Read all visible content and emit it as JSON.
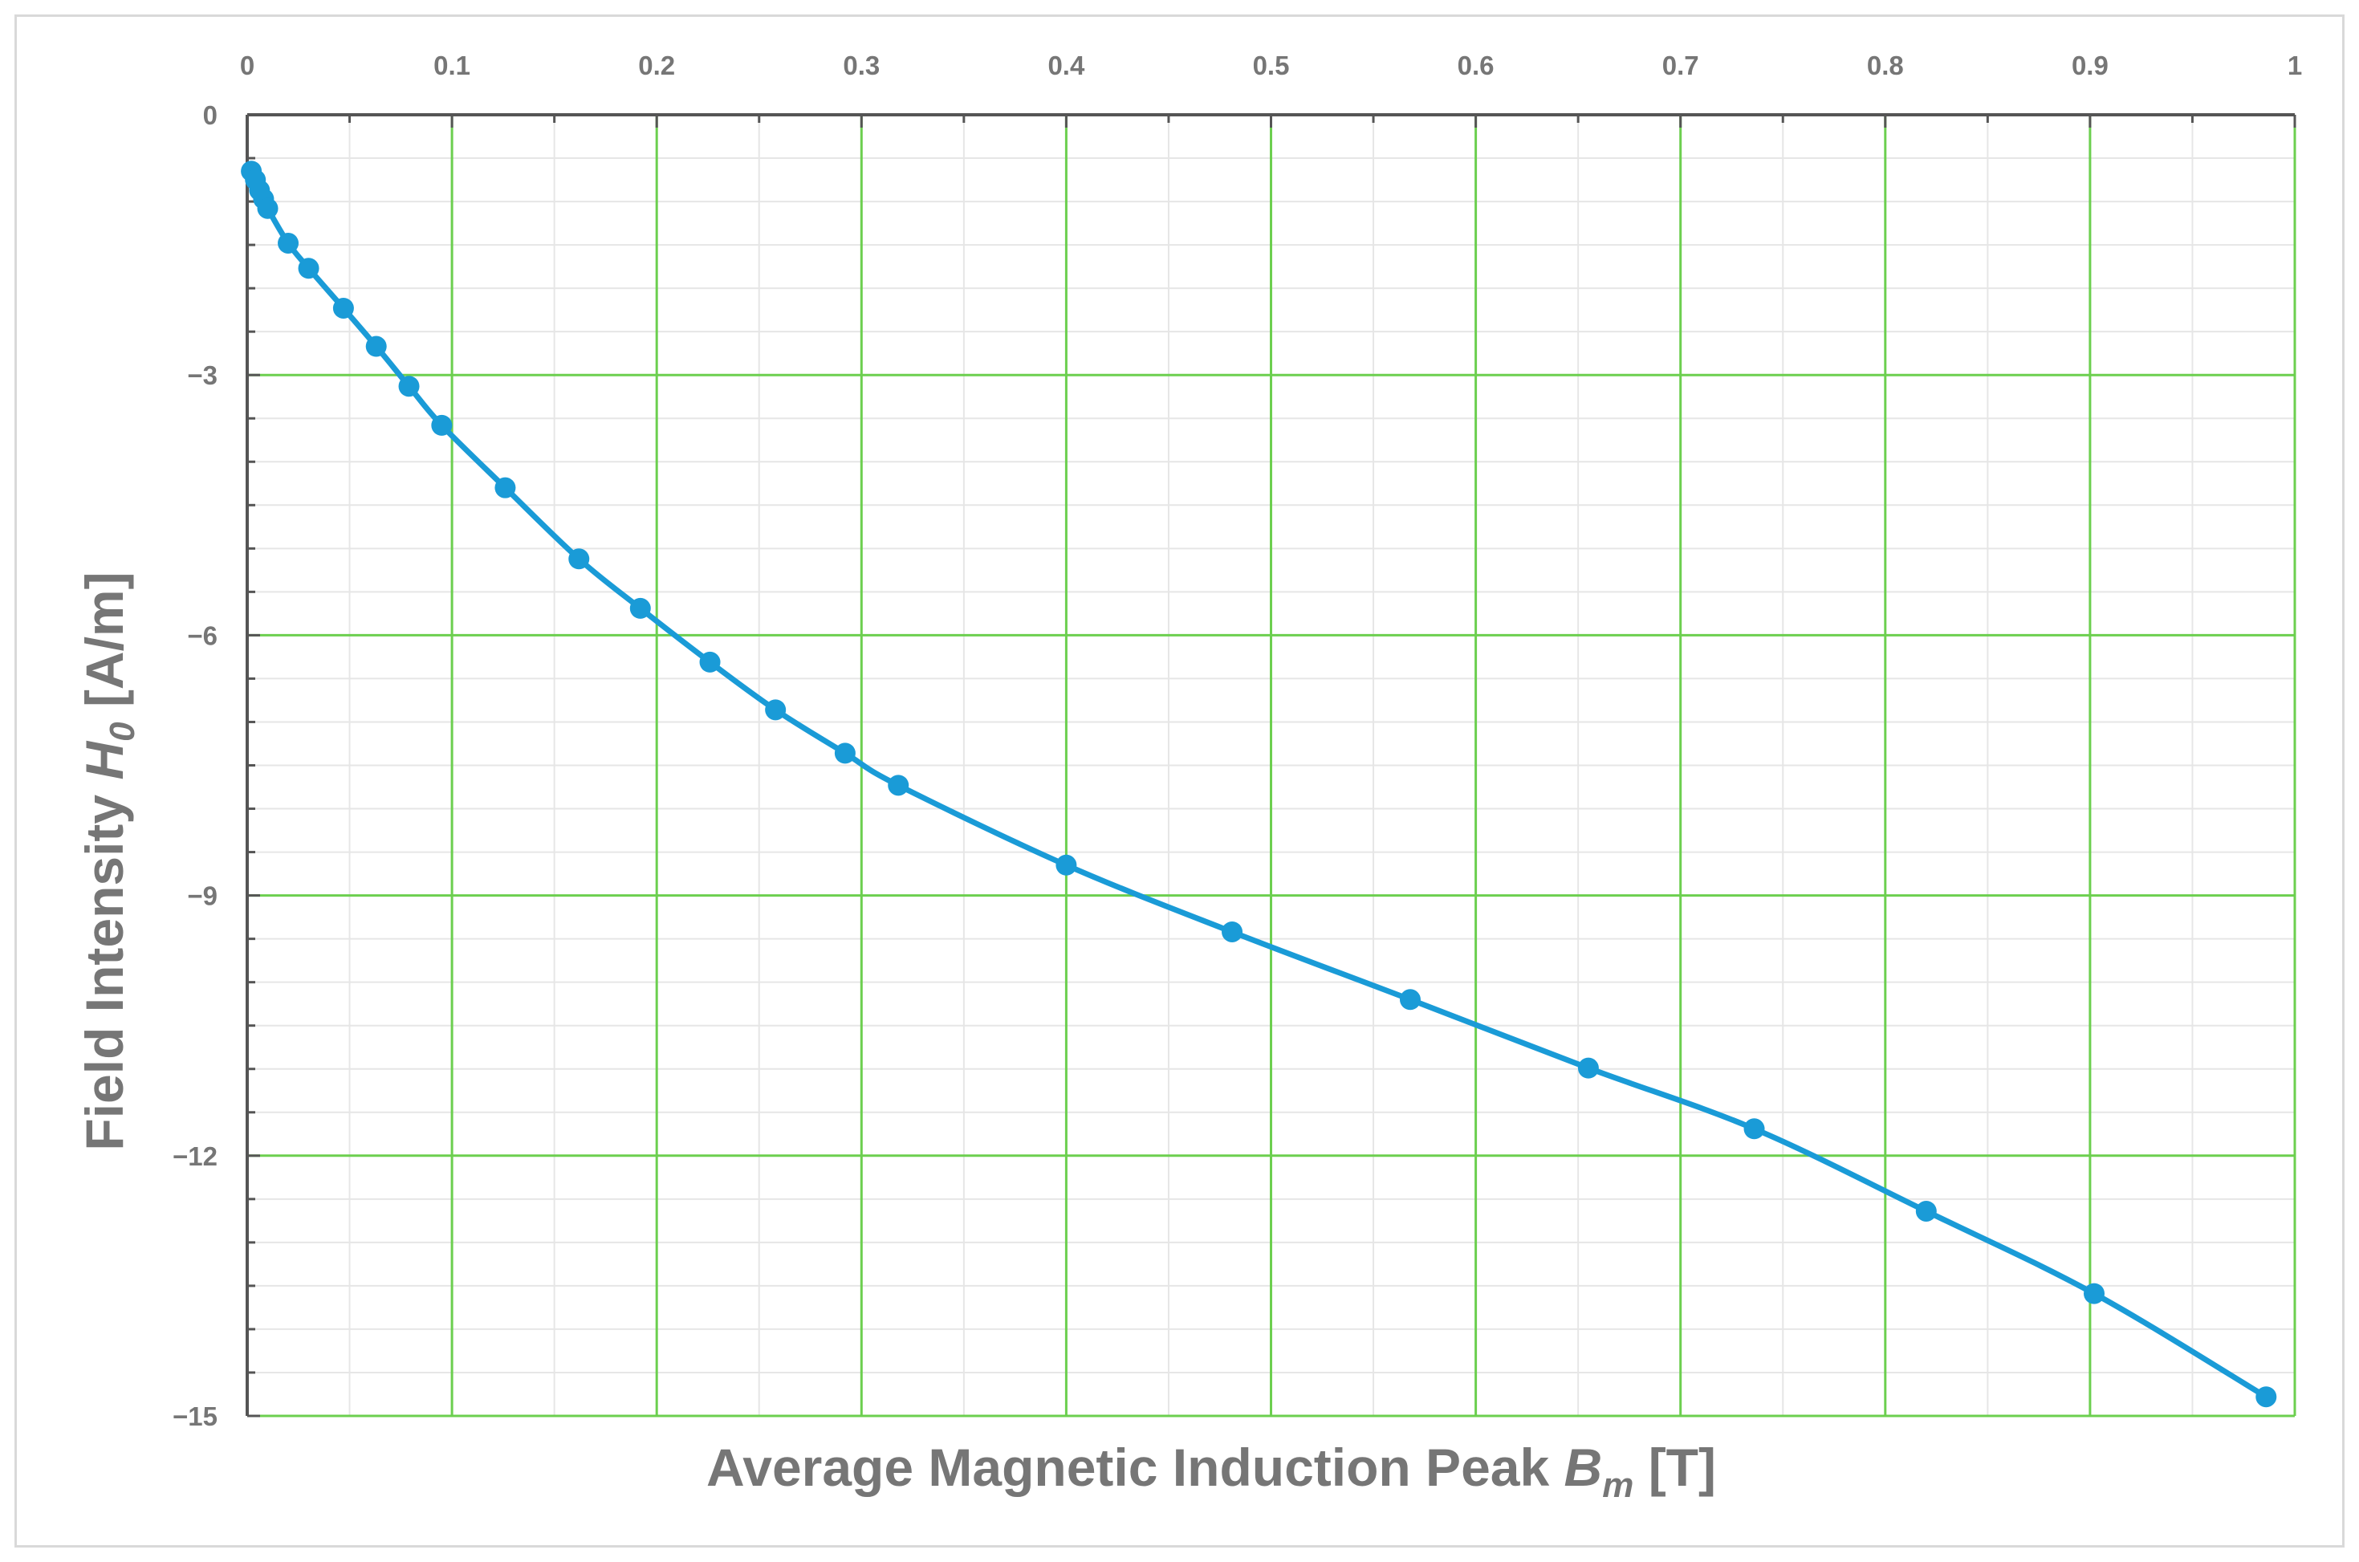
{
  "chart_data": {
    "type": "line",
    "xlabel": "Average Magnetic Induction Peak",
    "xlabel_symbol": "B",
    "xlabel_subscript": "m",
    "xlabel_unit": "[T]",
    "ylabel": "Field Intensity",
    "ylabel_symbol": "H",
    "ylabel_subscript": "0",
    "ylabel_unit": "[A/m]",
    "xlim": [
      0,
      1
    ],
    "ylim": [
      -15,
      0
    ],
    "x_ticks": [
      "0",
      "0.1",
      "0.2",
      "0.3",
      "0.4",
      "0.5",
      "0.6",
      "0.7",
      "0.8",
      "0.9",
      "1"
    ],
    "y_ticks": [
      "0",
      "−3",
      "−6",
      "−9",
      "−12",
      "−15"
    ],
    "x_axis_position": "top",
    "grid": true,
    "major_grid_color": "#6ccf4f",
    "minor_grid_color": "#e6e6e6",
    "line_color": "#1a9bd7",
    "axis_color": "#555555",
    "series": [
      {
        "x": [
          0.002,
          0.004,
          0.006,
          0.008,
          0.01,
          0.02,
          0.03,
          0.047,
          0.063,
          0.079,
          0.095,
          0.126,
          0.162,
          0.192,
          0.226,
          0.258,
          0.292,
          0.318,
          0.4,
          0.481,
          0.568,
          0.655,
          0.736,
          0.82,
          0.902,
          0.986
        ],
        "y": [
          -0.65,
          -0.75,
          -0.87,
          -0.97,
          -1.08,
          -1.48,
          -1.77,
          -2.23,
          -2.67,
          -3.13,
          -3.58,
          -4.3,
          -5.12,
          -5.69,
          -6.31,
          -6.86,
          -7.36,
          -7.73,
          -8.65,
          -9.42,
          -10.2,
          -10.99,
          -11.69,
          -12.64,
          -13.59,
          -14.78
        ]
      }
    ]
  }
}
